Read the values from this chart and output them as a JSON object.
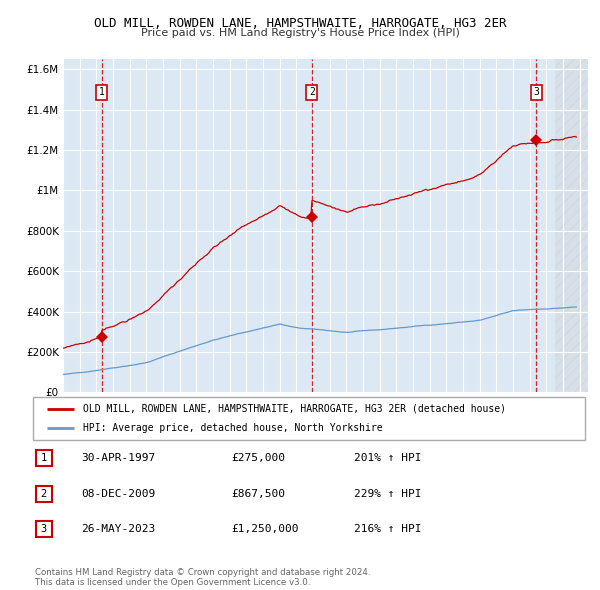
{
  "title": "OLD MILL, ROWDEN LANE, HAMPSTHWAITE, HARROGATE, HG3 2ER",
  "subtitle": "Price paid vs. HM Land Registry's House Price Index (HPI)",
  "legend_line1": "OLD MILL, ROWDEN LANE, HAMPSTHWAITE, HARROGATE, HG3 2ER (detached house)",
  "legend_line2": "HPI: Average price, detached house, North Yorkshire",
  "transactions": [
    {
      "num": 1,
      "date": "30-APR-1997",
      "price": 275000,
      "hpi_pct": "201%",
      "year": 1997.33
    },
    {
      "num": 2,
      "date": "08-DEC-2009",
      "price": 867500,
      "hpi_pct": "229%",
      "year": 2009.93
    },
    {
      "num": 3,
      "date": "26-MAY-2023",
      "price": 1250000,
      "hpi_pct": "216%",
      "year": 2023.4
    }
  ],
  "red_color": "#cc0000",
  "blue_color": "#6699cc",
  "bg_color": "#dce9f5",
  "grid_color": "#ffffff",
  "footer": "Contains HM Land Registry data © Crown copyright and database right 2024.\nThis data is licensed under the Open Government Licence v3.0.",
  "ylim": [
    0,
    1650000
  ],
  "xmin": 1995.0,
  "xmax": 2026.5,
  "hatch_start": 2024.5
}
